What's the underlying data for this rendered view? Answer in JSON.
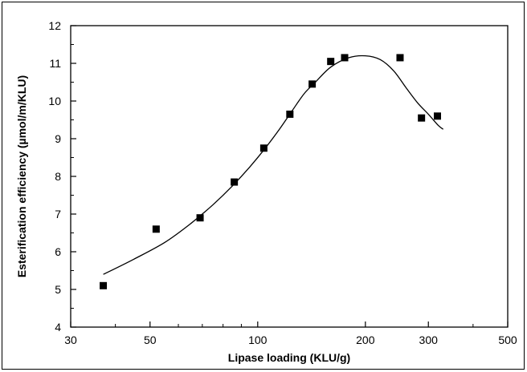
{
  "chart_data": {
    "type": "scatter",
    "title": "",
    "xlabel": "Lipase loading (KLU/g)",
    "ylabel": "Esterification efficiency (µmol/m/KLU)",
    "x_scale": "log",
    "xlim": [
      30,
      500
    ],
    "ylim": [
      4,
      12
    ],
    "x_ticks": [
      30,
      50,
      100,
      200,
      300,
      500
    ],
    "y_ticks": [
      4,
      5,
      6,
      7,
      8,
      9,
      10,
      11,
      12
    ],
    "grid": false,
    "legend": "none",
    "series": [
      {
        "type": "scatter",
        "marker": "square",
        "color": "#000000",
        "x": [
          37,
          52,
          69,
          86,
          104,
          123,
          142,
          160,
          175,
          250,
          287,
          318
        ],
        "y": [
          5.1,
          6.6,
          6.9,
          7.85,
          8.75,
          9.65,
          10.45,
          11.05,
          11.15,
          11.15,
          9.55,
          9.6
        ]
      },
      {
        "type": "line",
        "color": "#000000",
        "x": [
          37,
          45,
          55,
          65,
          75,
          85,
          95,
          105,
          115,
          125,
          135,
          145,
          160,
          180,
          200,
          220,
          240,
          260,
          280,
          300,
          320,
          330
        ],
        "y": [
          5.4,
          5.8,
          6.25,
          6.75,
          7.25,
          7.75,
          8.25,
          8.75,
          9.25,
          9.75,
          10.2,
          10.5,
          10.9,
          11.15,
          11.2,
          11.1,
          10.8,
          10.35,
          9.95,
          9.65,
          9.35,
          9.25
        ]
      }
    ]
  }
}
